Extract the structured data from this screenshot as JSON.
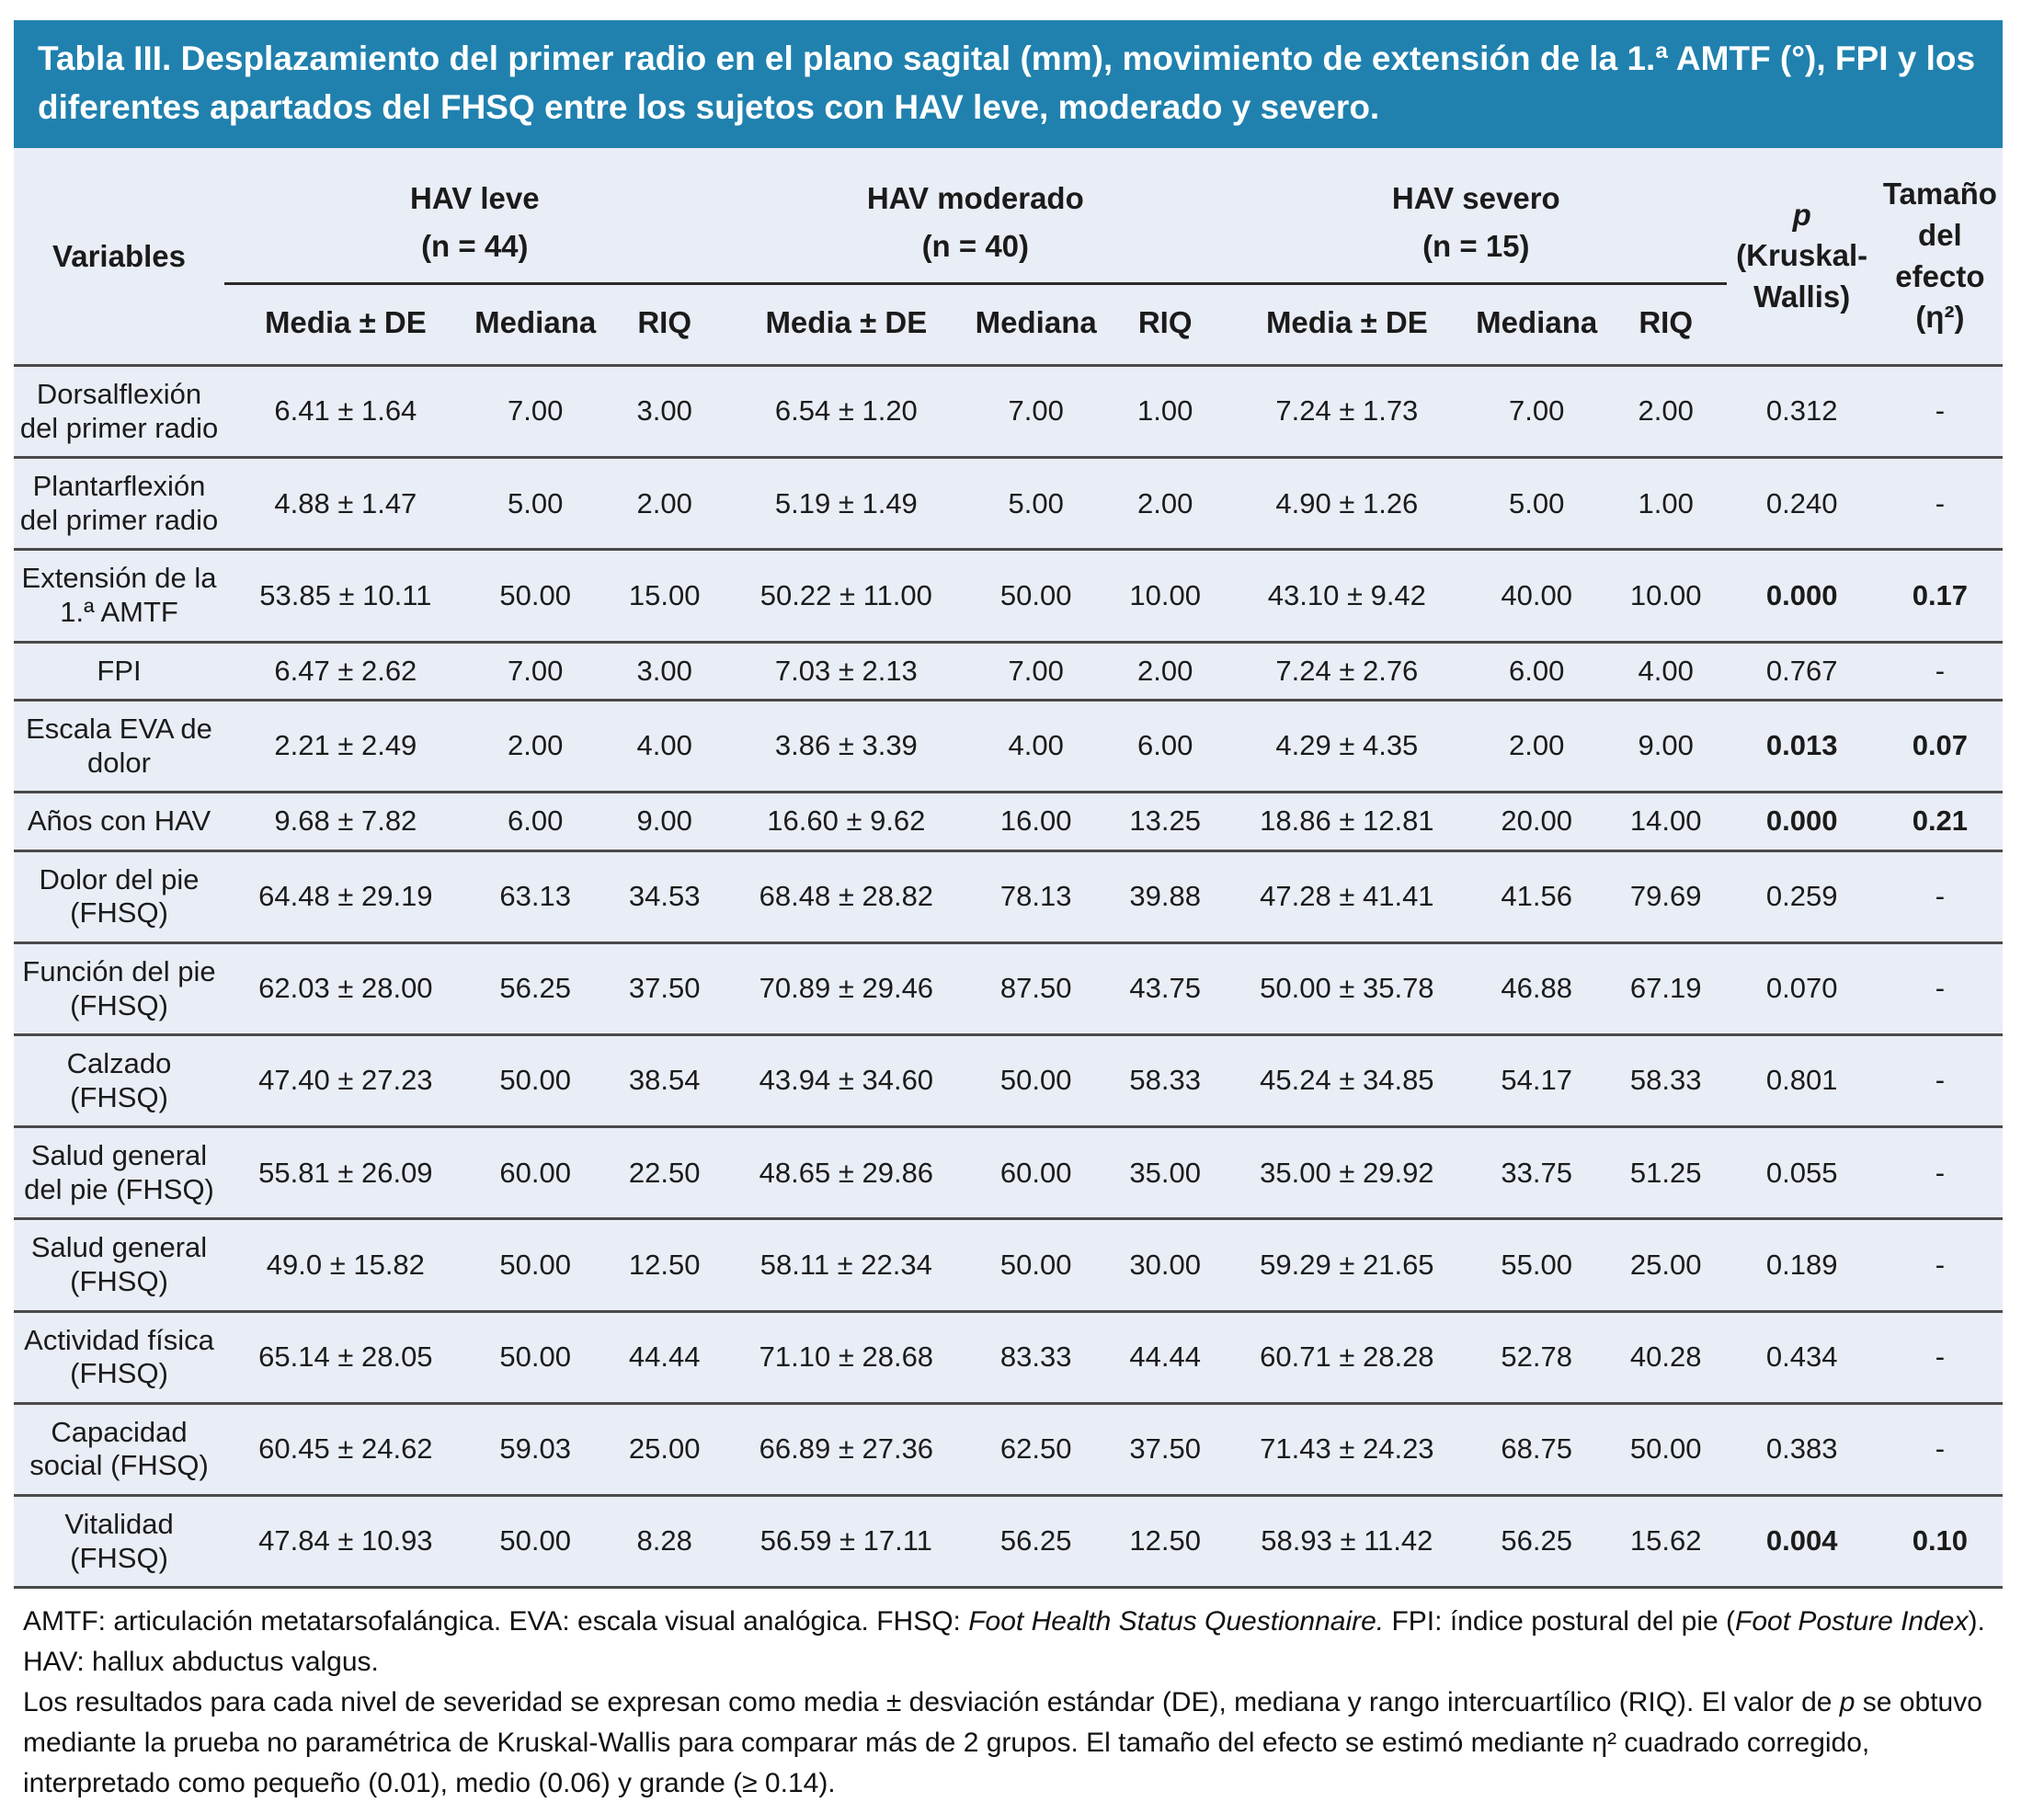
{
  "title": "Tabla III. Desplazamiento del primer radio en el plano sagital (mm), movimiento de extensión de la 1.ª AMTF (°), FPI y los diferentes apartados del FHSQ entre los sujetos con HAV leve, moderado y severo.",
  "colors": {
    "title_bar_bg": "#2081ae",
    "title_text": "#ffffff",
    "table_bg": "#e9edf6",
    "rule_line": "#4a4a4a",
    "text": "#1b1b1b"
  },
  "table": {
    "variables_header": "Variables",
    "groups": [
      {
        "label": "HAV leve",
        "n": "(n = 44)"
      },
      {
        "label": "HAV moderado",
        "n": "(n = 40)"
      },
      {
        "label": "HAV severo",
        "n": "(n = 15)"
      }
    ],
    "subheaders": [
      "Media ± DE",
      "Mediana",
      "RIQ"
    ],
    "p_header": {
      "line1": "p",
      "line2": "(Kruskal-",
      "line3": "Wallis)"
    },
    "effect_header": {
      "line1": "Tamaño",
      "line2": "del",
      "line3": "efecto",
      "line4": "(η²)"
    },
    "rows": [
      {
        "variable": "Dorsalflexión del primer radio",
        "values": [
          "6.41 ± 1.64",
          "7.00",
          "3.00",
          "6.54 ± 1.20",
          "7.00",
          "1.00",
          "7.24 ± 1.73",
          "7.00",
          "2.00"
        ],
        "p": "0.312",
        "effect": "-",
        "significant": false
      },
      {
        "variable": "Plantarflexión del primer radio",
        "values": [
          "4.88 ± 1.47",
          "5.00",
          "2.00",
          "5.19 ± 1.49",
          "5.00",
          "2.00",
          "4.90 ± 1.26",
          "5.00",
          "1.00"
        ],
        "p": "0.240",
        "effect": "-",
        "significant": false
      },
      {
        "variable": "Extensión de la 1.ª AMTF",
        "values": [
          "53.85 ± 10.11",
          "50.00",
          "15.00",
          "50.22 ± 11.00",
          "50.00",
          "10.00",
          "43.10 ± 9.42",
          "40.00",
          "10.00"
        ],
        "p": "0.000",
        "effect": "0.17",
        "significant": true
      },
      {
        "variable": "FPI",
        "values": [
          "6.47 ± 2.62",
          "7.00",
          "3.00",
          "7.03 ± 2.13",
          "7.00",
          "2.00",
          "7.24 ± 2.76",
          "6.00",
          "4.00"
        ],
        "p": "0.767",
        "effect": "-",
        "significant": false
      },
      {
        "variable": "Escala EVA de dolor",
        "values": [
          "2.21 ± 2.49",
          "2.00",
          "4.00",
          "3.86 ± 3.39",
          "4.00",
          "6.00",
          "4.29 ± 4.35",
          "2.00",
          "9.00"
        ],
        "p": "0.013",
        "effect": "0.07",
        "significant": true
      },
      {
        "variable": "Años con HAV",
        "values": [
          "9.68 ± 7.82",
          "6.00",
          "9.00",
          "16.60 ± 9.62",
          "16.00",
          "13.25",
          "18.86 ± 12.81",
          "20.00",
          "14.00"
        ],
        "p": "0.000",
        "effect": "0.21",
        "significant": true
      },
      {
        "variable": "Dolor del pie (FHSQ)",
        "values": [
          "64.48 ± 29.19",
          "63.13",
          "34.53",
          "68.48 ± 28.82",
          "78.13",
          "39.88",
          "47.28 ± 41.41",
          "41.56",
          "79.69"
        ],
        "p": "0.259",
        "effect": "-",
        "significant": false
      },
      {
        "variable": "Función del pie (FHSQ)",
        "values": [
          "62.03 ± 28.00",
          "56.25",
          "37.50",
          "70.89 ± 29.46",
          "87.50",
          "43.75",
          "50.00 ± 35.78",
          "46.88",
          "67.19"
        ],
        "p": "0.070",
        "effect": "-",
        "significant": false
      },
      {
        "variable": "Calzado (FHSQ)",
        "values": [
          "47.40 ± 27.23",
          "50.00",
          "38.54",
          "43.94 ± 34.60",
          "50.00",
          "58.33",
          "45.24 ± 34.85",
          "54.17",
          "58.33"
        ],
        "p": "0.801",
        "effect": "-",
        "significant": false
      },
      {
        "variable": "Salud general del pie (FHSQ)",
        "values": [
          "55.81 ± 26.09",
          "60.00",
          "22.50",
          "48.65 ± 29.86",
          "60.00",
          "35.00",
          "35.00 ± 29.92",
          "33.75",
          "51.25"
        ],
        "p": "0.055",
        "effect": "-",
        "significant": false
      },
      {
        "variable": "Salud general (FHSQ)",
        "values": [
          "49.0 ± 15.82",
          "50.00",
          "12.50",
          "58.11 ± 22.34",
          "50.00",
          "30.00",
          "59.29 ± 21.65",
          "55.00",
          "25.00"
        ],
        "p": "0.189",
        "effect": "-",
        "significant": false
      },
      {
        "variable": "Actividad física (FHSQ)",
        "values": [
          "65.14 ± 28.05",
          "50.00",
          "44.44",
          "71.10 ± 28.68",
          "83.33",
          "44.44",
          "60.71 ± 28.28",
          "52.78",
          "40.28"
        ],
        "p": "0.434",
        "effect": "-",
        "significant": false
      },
      {
        "variable": "Capacidad social (FHSQ)",
        "values": [
          "60.45 ± 24.62",
          "59.03",
          "25.00",
          "66.89 ± 27.36",
          "62.50",
          "37.50",
          "71.43 ± 24.23",
          "68.75",
          "50.00"
        ],
        "p": "0.383",
        "effect": "-",
        "significant": false
      },
      {
        "variable": "Vitalidad (FHSQ)",
        "values": [
          "47.84 ± 10.93",
          "50.00",
          "8.28",
          "56.59 ± 17.11",
          "56.25",
          "12.50",
          "58.93 ± 11.42",
          "56.25",
          "15.62"
        ],
        "p": "0.004",
        "effect": "0.10",
        "significant": true
      }
    ]
  },
  "footnotes": {
    "abbrev": [
      {
        "t": "AMTF: articulación metatarsofalángica. EVA: escala visual analógica. FHSQ: "
      },
      {
        "t": "Foot Health Status Questionnaire.",
        "i": true
      },
      {
        "t": " FPI: índice postural del pie ("
      },
      {
        "t": "Foot Posture Index",
        "i": true
      },
      {
        "t": "). HAV: hallux abductus valgus."
      }
    ],
    "methods": [
      {
        "t": "Los resultados para cada nivel de severidad se expresan como media ± desviación estándar (DE), mediana y rango intercuartílico (RIQ). El valor de "
      },
      {
        "t": "p",
        "i": true
      },
      {
        "t": " se obtuvo mediante la prueba no paramétrica de Kruskal-Wallis para comparar más de 2 grupos. El tamaño del efecto se estimó mediante η² cuadrado corregido, interpretado como pequeño (0.01), medio (0.06) y grande (≥ 0.14)."
      }
    ]
  }
}
